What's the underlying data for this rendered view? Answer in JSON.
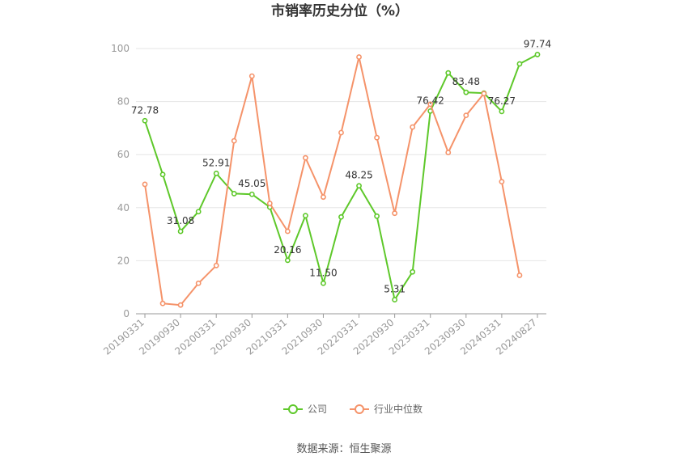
{
  "chart_data": {
    "type": "line",
    "title": "市销率历史分位（%）",
    "xlabel": "",
    "ylabel": "",
    "ylim": [
      0,
      100
    ],
    "yticks": [
      0,
      20,
      40,
      60,
      80,
      100
    ],
    "grid": true,
    "legend_position": "bottom",
    "x": [
      "20190331",
      "20190630",
      "20190930",
      "20191231",
      "20200331",
      "20200630",
      "20200930",
      "20201231",
      "20210331",
      "20210630",
      "20210930",
      "20211231",
      "20220331",
      "20220630",
      "20220930",
      "20221231",
      "20230331",
      "20230630",
      "20230930",
      "20231231",
      "20240331",
      "20240630",
      "20240827"
    ],
    "x_tick_labels": [
      "20190331",
      "20190930",
      "20200331",
      "20200930",
      "20210331",
      "20210930",
      "20220331",
      "20220930",
      "20230331",
      "20230930",
      "20240331",
      "20240827"
    ],
    "series": [
      {
        "name": "公司",
        "color": "#5ec82a",
        "values": [
          72.78,
          52.5,
          31.08,
          38.5,
          52.91,
          45.3,
          45.05,
          40.2,
          20.16,
          37.0,
          11.5,
          36.5,
          48.25,
          36.8,
          5.31,
          15.8,
          76.42,
          90.8,
          83.48,
          83.2,
          76.27,
          94.2,
          97.74
        ],
        "labels": {
          "0": "72.78",
          "2": "31.08",
          "4": "52.91",
          "6": "45.05",
          "8": "20.16",
          "10": "11.50",
          "12": "48.25",
          "14": "5.31",
          "16": "76.42",
          "18": "83.48",
          "20": "76.27",
          "22": "97.74"
        }
      },
      {
        "name": "行业中位数",
        "color": "#f5936a",
        "values": [
          48.8,
          3.9,
          3.3,
          11.5,
          18.2,
          65.2,
          89.6,
          41.6,
          31.1,
          58.8,
          44.0,
          68.3,
          96.8,
          66.4,
          37.9,
          70.4,
          79.0,
          60.8,
          74.8,
          83.0,
          49.8,
          14.5,
          null
        ]
      }
    ]
  },
  "footer": {
    "source": "数据来源：恒生聚源"
  }
}
